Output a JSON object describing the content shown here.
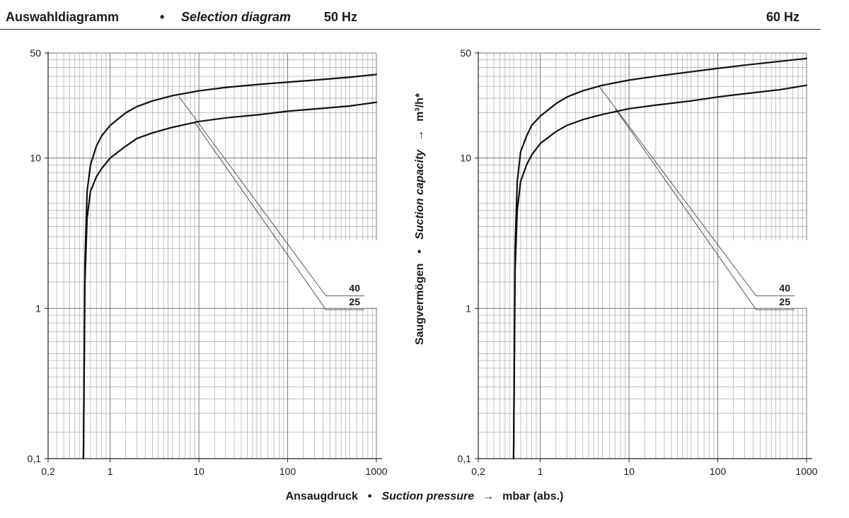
{
  "header": {
    "title_de": "Auswahldiagramm",
    "separator": "•",
    "title_en": "Selection diagram",
    "freq_left": "50 Hz",
    "freq_right": "60 Hz"
  },
  "y_axis_label": {
    "de": "Saugvermögen",
    "separator": "•",
    "en": "Suction capacity",
    "arrow": "→",
    "unit": "m³/h*"
  },
  "x_axis_label": {
    "de": "Ansaugdruck",
    "separator": "•",
    "en": "Suction pressure",
    "arrow": "→",
    "unit": "mbar (abs.)"
  },
  "chart_data": [
    {
      "type": "line",
      "title": "50 Hz",
      "x_scale": "log",
      "y_scale": "log",
      "xlim": [
        0.2,
        1000
      ],
      "ylim": [
        0.1,
        50
      ],
      "x_ticks": [
        0.2,
        1,
        10,
        100,
        1000
      ],
      "x_tick_labels": [
        "0,2",
        "1",
        "10",
        "100",
        "1000"
      ],
      "y_ticks": [
        0.1,
        1,
        10,
        50
      ],
      "y_tick_labels": [
        "0,1",
        "1",
        "10",
        "50"
      ],
      "grid": true,
      "series": [
        {
          "name": "40",
          "x": [
            0.5,
            0.52,
            0.55,
            0.6,
            0.7,
            0.8,
            1,
            1.5,
            2,
            3,
            5,
            10,
            20,
            50,
            100,
            200,
            500,
            1000
          ],
          "y": [
            0.1,
            2,
            6,
            9,
            12,
            14,
            16.5,
            20,
            22,
            24,
            26,
            28,
            29.5,
            31,
            32,
            33,
            34.5,
            36
          ]
        },
        {
          "name": "25",
          "x": [
            0.5,
            0.52,
            0.55,
            0.6,
            0.7,
            0.8,
            1,
            1.5,
            2,
            3,
            5,
            10,
            20,
            50,
            100,
            200,
            500,
            1000
          ],
          "y": [
            0.1,
            1.5,
            4,
            6,
            7.5,
            8.5,
            10,
            12,
            13.5,
            14.7,
            16,
            17.5,
            18.5,
            19.5,
            20.5,
            21.2,
            22.2,
            23.5
          ]
        }
      ],
      "annotation_lines": [
        {
          "label": "40",
          "from": [
            6,
            25.5
          ],
          "to": [
            270,
            1.21
          ]
        },
        {
          "label": "25",
          "from": [
            9,
            17.2
          ],
          "to": [
            270,
            0.98
          ]
        }
      ]
    },
    {
      "type": "line",
      "title": "60 Hz",
      "x_scale": "log",
      "y_scale": "log",
      "xlim": [
        0.2,
        1000
      ],
      "ylim": [
        0.1,
        50
      ],
      "x_ticks": [
        0.2,
        1,
        10,
        100,
        1000
      ],
      "x_tick_labels": [
        "0,2",
        "1",
        "10",
        "100",
        "1000"
      ],
      "y_ticks": [
        0.1,
        1,
        10,
        50
      ],
      "y_tick_labels": [
        "0,1",
        "1",
        "10",
        "50"
      ],
      "grid": true,
      "series": [
        {
          "name": "40",
          "x": [
            0.5,
            0.52,
            0.55,
            0.6,
            0.7,
            0.8,
            1,
            1.5,
            2,
            3,
            5,
            10,
            20,
            50,
            100,
            200,
            500,
            1000
          ],
          "y": [
            0.1,
            2.5,
            7,
            11,
            14,
            16.5,
            19,
            23,
            25.5,
            28,
            30.5,
            33,
            35,
            37.5,
            39.5,
            41.5,
            44,
            46
          ]
        },
        {
          "name": "25",
          "x": [
            0.5,
            0.52,
            0.55,
            0.6,
            0.7,
            0.8,
            1,
            1.5,
            2,
            3,
            5,
            10,
            20,
            50,
            100,
            200,
            500,
            1000
          ],
          "y": [
            0.1,
            1.8,
            4.5,
            7,
            9,
            10.5,
            12.5,
            15,
            16.5,
            18,
            19.5,
            21.3,
            22.5,
            24,
            25.5,
            26.8,
            28.5,
            30.5
          ]
        }
      ],
      "annotation_lines": [
        {
          "label": "40",
          "from": [
            4.5,
            30.5
          ],
          "to": [
            270,
            1.21
          ]
        },
        {
          "label": "25",
          "from": [
            7,
            21.3
          ],
          "to": [
            270,
            0.98
          ]
        }
      ]
    }
  ]
}
